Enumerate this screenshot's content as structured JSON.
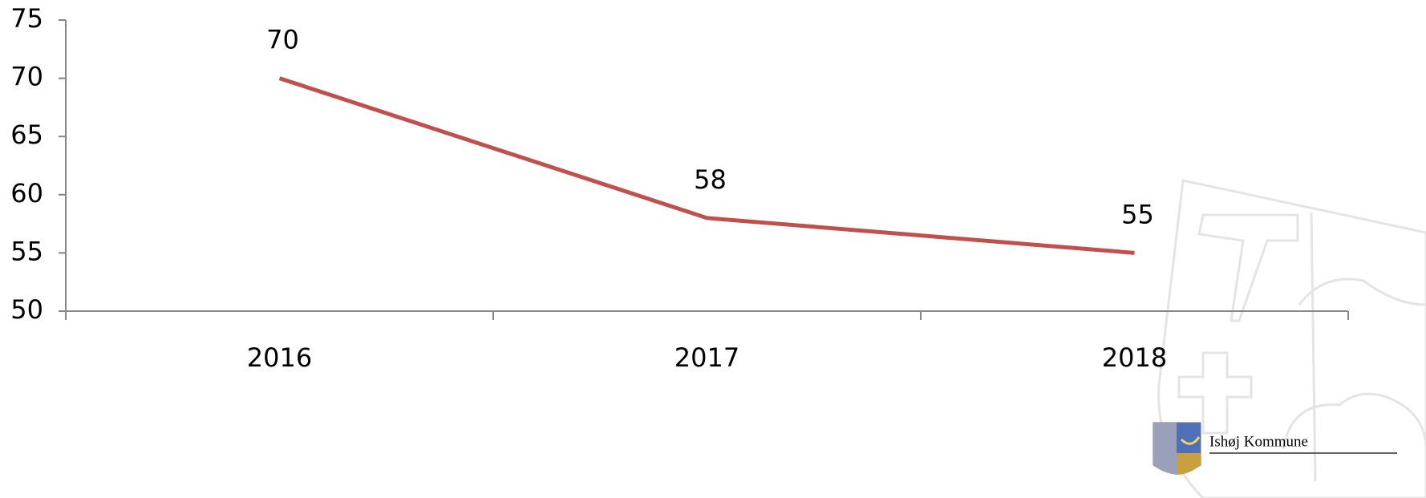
{
  "chart_data": {
    "type": "line",
    "categories": [
      "2016",
      "2017",
      "2018"
    ],
    "series": [
      {
        "color": "#c0504d",
        "values": [
          70,
          58,
          55
        ]
      }
    ],
    "ylim": [
      50,
      75
    ],
    "yticks": [
      50,
      55,
      60,
      65,
      70,
      75
    ],
    "grid": false
  },
  "logo": {
    "text": "Ishøj Kommune"
  }
}
